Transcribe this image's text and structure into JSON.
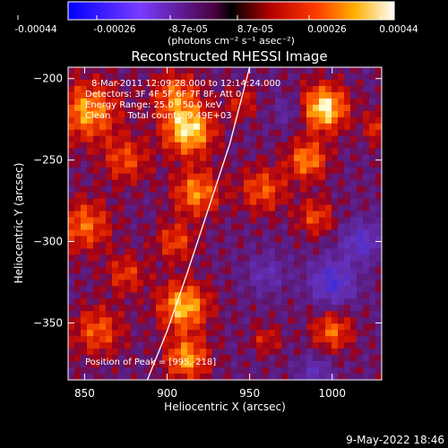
{
  "chart_data": {
    "type": "heatmap",
    "title": "Reconstructed RHESSI Image",
    "xlabel": "Heliocentric X (arcsec)",
    "ylabel": "Heliocentric Y (arcsec)",
    "xlim": [
      840,
      1030
    ],
    "ylim": [
      -385,
      -193
    ],
    "xticks": [
      850,
      900,
      950,
      1000
    ],
    "yticks": [
      -200,
      -250,
      -300,
      -350
    ],
    "colorbar": {
      "ticks": [
        "-0.00044",
        "-0.00026",
        "-8.7e-05",
        "8.7e-05",
        "0.00026",
        "0.00044"
      ],
      "min": -0.00044,
      "max": 0.00044,
      "unit_label": "(photons cm⁻² s⁻¹ asec⁻²)"
    },
    "annotations": [
      "8-Mar-2011 12:09:28.000 to 12:14:24.000",
      "Detectors: 3F 4F 5F 6F 7F 8F, Att 0",
      "Energy Range: 25.0 - 50.0 keV",
      "Clean      Total counts: 9.49E+03"
    ],
    "peak_label": "Position of Peak = [995,-218]",
    "peak": [
      995,
      -218
    ],
    "limb_curve": [
      [
        888,
        -385
      ],
      [
        900,
        -355
      ],
      [
        912,
        -320
      ],
      [
        925,
        -280
      ],
      [
        938,
        -240
      ],
      [
        950,
        -193
      ]
    ],
    "timestamp": "9-May-2022 18:46",
    "blobs": [
      {
        "x": 852,
        "y": -220,
        "a": 0.75,
        "r": 18
      },
      {
        "x": 850,
        "y": -290,
        "a": 0.6,
        "r": 16
      },
      {
        "x": 858,
        "y": -355,
        "a": 0.55,
        "r": 15
      },
      {
        "x": 875,
        "y": -250,
        "a": 0.5,
        "r": 14
      },
      {
        "x": 875,
        "y": -320,
        "a": 0.45,
        "r": 12
      },
      {
        "x": 905,
        "y": -210,
        "a": 0.6,
        "r": 14
      },
      {
        "x": 913,
        "y": -232,
        "a": 0.95,
        "r": 15
      },
      {
        "x": 918,
        "y": -270,
        "a": 0.7,
        "r": 14
      },
      {
        "x": 905,
        "y": -300,
        "a": 0.5,
        "r": 12
      },
      {
        "x": 910,
        "y": -340,
        "a": 0.85,
        "r": 15
      },
      {
        "x": 912,
        "y": -372,
        "a": 0.75,
        "r": 13
      },
      {
        "x": 958,
        "y": -268,
        "a": 0.55,
        "r": 14
      },
      {
        "x": 945,
        "y": -215,
        "a": 0.35,
        "r": 10
      },
      {
        "x": 995,
        "y": -218,
        "a": 1.0,
        "r": 14
      },
      {
        "x": 985,
        "y": -250,
        "a": 0.7,
        "r": 12
      },
      {
        "x": 990,
        "y": -285,
        "a": 0.5,
        "r": 11
      },
      {
        "x": 1000,
        "y": -355,
        "a": 0.6,
        "r": 12
      },
      {
        "x": 960,
        "y": -360,
        "a": 0.35,
        "r": 9
      },
      {
        "x": 1030,
        "y": -230,
        "a": 0.5,
        "r": 10
      },
      {
        "x": 1000,
        "y": -325,
        "a": -0.65,
        "r": 14
      },
      {
        "x": 1018,
        "y": -300,
        "a": -0.55,
        "r": 12
      },
      {
        "x": 960,
        "y": -320,
        "a": -0.35,
        "r": 12
      },
      {
        "x": 990,
        "y": -380,
        "a": -0.4,
        "r": 10
      },
      {
        "x": 975,
        "y": -220,
        "a": -0.3,
        "r": 10
      }
    ]
  }
}
